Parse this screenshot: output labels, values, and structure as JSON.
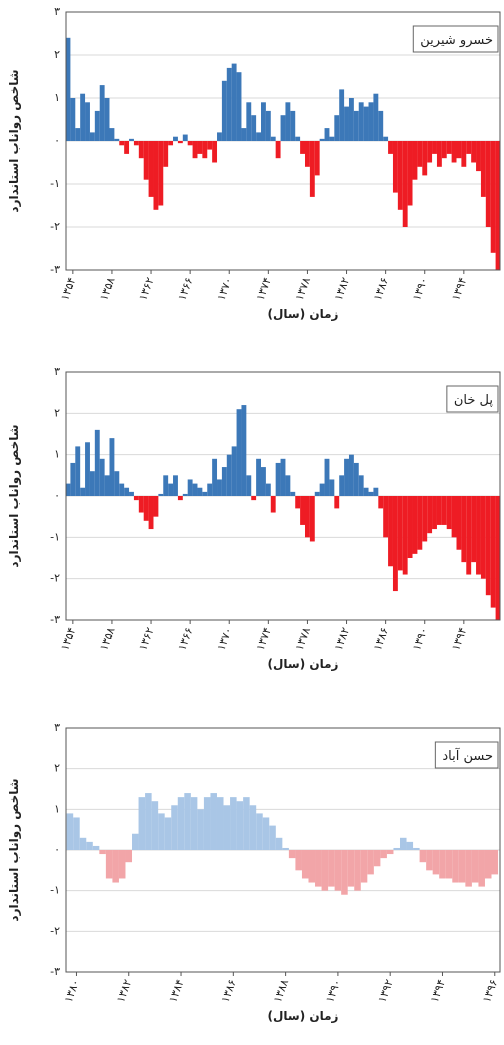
{
  "chart_data": [
    {
      "type": "bar",
      "label": "خسرو شیرین",
      "y_label": "شاخص رواناب استاندارد",
      "x_label": "زمان (سال)",
      "x": [
        1353.5,
        1354,
        1354.5,
        1355,
        1355.5,
        1356,
        1356.5,
        1357,
        1357.5,
        1358,
        1358.5,
        1359,
        1359.5,
        1360,
        1360.5,
        1361,
        1361.5,
        1362,
        1362.5,
        1363,
        1363.5,
        1364,
        1364.5,
        1365,
        1365.5,
        1366,
        1366.5,
        1367,
        1367.5,
        1368,
        1368.5,
        1369,
        1369.5,
        1370,
        1370.5,
        1371,
        1371.5,
        1372,
        1372.5,
        1373,
        1373.5,
        1374,
        1374.5,
        1375,
        1375.5,
        1376,
        1376.5,
        1377,
        1377.5,
        1378,
        1378.5,
        1379,
        1379.5,
        1380,
        1380.5,
        1381,
        1381.5,
        1382,
        1382.5,
        1383,
        1383.5,
        1384,
        1384.5,
        1385,
        1385.5,
        1386,
        1386.5,
        1387,
        1387.5,
        1388,
        1388.5,
        1389,
        1389.5,
        1390,
        1390.5,
        1391,
        1391.5,
        1392,
        1392.5,
        1393,
        1393.5,
        1394,
        1394.5,
        1395,
        1395.5,
        1396,
        1396.5,
        1397,
        1397.5
      ],
      "values": [
        2.4,
        1.0,
        0.3,
        1.1,
        0.9,
        0.2,
        0.7,
        1.3,
        1.0,
        0.3,
        0.05,
        -0.1,
        -0.3,
        0.05,
        -0.1,
        -0.4,
        -0.9,
        -1.3,
        -1.6,
        -1.5,
        -0.6,
        -0.1,
        0.1,
        -0.05,
        0.15,
        -0.1,
        -0.4,
        -0.3,
        -0.4,
        -0.2,
        -0.5,
        0.2,
        1.4,
        1.7,
        1.8,
        1.6,
        0.3,
        0.9,
        0.6,
        0.2,
        0.9,
        0.7,
        0.1,
        -0.4,
        0.6,
        0.9,
        0.7,
        0.1,
        -0.3,
        -0.6,
        -1.3,
        -0.8,
        0.05,
        0.3,
        0.1,
        0.6,
        1.2,
        0.8,
        1.0,
        0.7,
        0.9,
        0.8,
        0.9,
        1.1,
        0.7,
        0.1,
        -0.3,
        -1.2,
        -1.6,
        -2.0,
        -1.5,
        -0.9,
        -0.6,
        -0.8,
        -0.5,
        -0.3,
        -0.6,
        -0.4,
        -0.3,
        -0.5,
        -0.4,
        -0.6,
        -0.3,
        -0.5,
        -0.7,
        -1.3,
        -2.0,
        -2.6,
        -3.0
      ],
      "positive_color": "#3c78b8",
      "negative_color": "#ee1c24",
      "xlim": [
        1353.3,
        1397.7
      ],
      "ylim": [
        -3,
        3
      ],
      "xticks": [
        {
          "value": 1354,
          "label": "۱۳۵۴"
        },
        {
          "value": 1358,
          "label": "۱۳۵۸"
        },
        {
          "value": 1362,
          "label": "۱۳۶۲"
        },
        {
          "value": 1366,
          "label": "۱۳۶۶"
        },
        {
          "value": 1370,
          "label": "۱۳۷۰"
        },
        {
          "value": 1374,
          "label": "۱۳۷۴"
        },
        {
          "value": 1378,
          "label": "۱۳۷۸"
        },
        {
          "value": 1382,
          "label": "۱۳۸۲"
        },
        {
          "value": 1386,
          "label": "۱۳۸۶"
        },
        {
          "value": 1390,
          "label": "۱۳۹۰"
        },
        {
          "value": 1394,
          "label": "۱۳۹۴"
        }
      ],
      "yticks": [
        {
          "value": -3,
          "label": "-۳"
        },
        {
          "value": -2,
          "label": "-۲"
        },
        {
          "value": -1,
          "label": "-۱"
        },
        {
          "value": 0,
          "label": "۰"
        },
        {
          "value": 1,
          "label": "۱"
        },
        {
          "value": 2,
          "label": "۲"
        },
        {
          "value": 3,
          "label": "۳"
        }
      ],
      "grid": true
    },
    {
      "type": "bar",
      "label": "پل خان",
      "y_label": "شاخص رواناب استاندارد",
      "x_label": "زمان (سال)",
      "x": [
        1353.5,
        1354,
        1354.5,
        1355,
        1355.5,
        1356,
        1356.5,
        1357,
        1357.5,
        1358,
        1358.5,
        1359,
        1359.5,
        1360,
        1360.5,
        1361,
        1361.5,
        1362,
        1362.5,
        1363,
        1363.5,
        1364,
        1364.5,
        1365,
        1365.5,
        1366,
        1366.5,
        1367,
        1367.5,
        1368,
        1368.5,
        1369,
        1369.5,
        1370,
        1370.5,
        1371,
        1371.5,
        1372,
        1372.5,
        1373,
        1373.5,
        1374,
        1374.5,
        1375,
        1375.5,
        1376,
        1376.5,
        1377,
        1377.5,
        1378,
        1378.5,
        1379,
        1379.5,
        1380,
        1380.5,
        1381,
        1381.5,
        1382,
        1382.5,
        1383,
        1383.5,
        1384,
        1384.5,
        1385,
        1385.5,
        1386,
        1386.5,
        1387,
        1387.5,
        1388,
        1388.5,
        1389,
        1389.5,
        1390,
        1390.5,
        1391,
        1391.5,
        1392,
        1392.5,
        1393,
        1393.5,
        1394,
        1394.5,
        1395,
        1395.5,
        1396,
        1396.5,
        1397,
        1397.5
      ],
      "values": [
        0.3,
        0.8,
        1.2,
        0.2,
        1.3,
        0.6,
        1.6,
        0.9,
        0.5,
        1.4,
        0.6,
        0.3,
        0.2,
        0.1,
        -0.1,
        -0.4,
        -0.6,
        -0.8,
        -0.5,
        0.05,
        0.5,
        0.3,
        0.5,
        -0.1,
        0.05,
        0.4,
        0.3,
        0.2,
        0.1,
        0.3,
        0.9,
        0.4,
        0.7,
        1.0,
        1.2,
        2.1,
        2.2,
        0.5,
        -0.1,
        0.9,
        0.7,
        0.3,
        -0.4,
        0.8,
        0.9,
        0.5,
        0.1,
        -0.3,
        -0.7,
        -1.0,
        -1.1,
        0.1,
        0.3,
        0.9,
        0.4,
        -0.3,
        0.5,
        0.9,
        1.0,
        0.8,
        0.5,
        0.2,
        0.1,
        0.2,
        -0.3,
        -1.0,
        -1.7,
        -2.3,
        -1.8,
        -1.9,
        -1.5,
        -1.4,
        -1.3,
        -1.1,
        -0.9,
        -0.8,
        -0.7,
        -0.7,
        -0.8,
        -1.0,
        -1.3,
        -1.6,
        -1.9,
        -1.6,
        -1.9,
        -2.0,
        -2.4,
        -2.7,
        -3.0
      ],
      "positive_color": "#3c78b8",
      "negative_color": "#ee1c24",
      "xlim": [
        1353.3,
        1397.7
      ],
      "ylim": [
        -3,
        3
      ],
      "xticks": [
        {
          "value": 1354,
          "label": "۱۳۵۴"
        },
        {
          "value": 1358,
          "label": "۱۳۵۸"
        },
        {
          "value": 1362,
          "label": "۱۳۶۲"
        },
        {
          "value": 1366,
          "label": "۱۳۶۶"
        },
        {
          "value": 1370,
          "label": "۱۳۷۰"
        },
        {
          "value": 1374,
          "label": "۱۳۷۴"
        },
        {
          "value": 1378,
          "label": "۱۳۷۸"
        },
        {
          "value": 1382,
          "label": "۱۳۸۲"
        },
        {
          "value": 1386,
          "label": "۱۳۸۶"
        },
        {
          "value": 1390,
          "label": "۱۳۹۰"
        },
        {
          "value": 1394,
          "label": "۱۳۹۴"
        }
      ],
      "yticks": [
        {
          "value": -3,
          "label": "-۳"
        },
        {
          "value": -2,
          "label": "-۲"
        },
        {
          "value": -1,
          "label": "-۱"
        },
        {
          "value": 0,
          "label": "۰"
        },
        {
          "value": 1,
          "label": "۱"
        },
        {
          "value": 2,
          "label": "۲"
        },
        {
          "value": 3,
          "label": "۳"
        }
      ],
      "grid": true
    },
    {
      "type": "bar",
      "label": "حسن آباد",
      "y_label": "شاخص رواناب استاندارد",
      "x_label": "زمان (سال)",
      "x": [
        1379.75,
        1380,
        1380.25,
        1380.5,
        1380.75,
        1381,
        1381.25,
        1381.5,
        1381.75,
        1382,
        1382.25,
        1382.5,
        1382.75,
        1383,
        1383.25,
        1383.5,
        1383.75,
        1384,
        1384.25,
        1384.5,
        1384.75,
        1385,
        1385.25,
        1385.5,
        1385.75,
        1386,
        1386.25,
        1386.5,
        1386.75,
        1387,
        1387.25,
        1387.5,
        1387.75,
        1388,
        1388.25,
        1388.5,
        1388.75,
        1389,
        1389.25,
        1389.5,
        1389.75,
        1390,
        1390.25,
        1390.5,
        1390.75,
        1391,
        1391.25,
        1391.5,
        1391.75,
        1392,
        1392.25,
        1392.5,
        1392.75,
        1393,
        1393.25,
        1393.5,
        1393.75,
        1394,
        1394.25,
        1394.5,
        1394.75,
        1395,
        1395.25,
        1395.5,
        1395.75,
        1396
      ],
      "values": [
        0.9,
        0.8,
        0.3,
        0.2,
        0.1,
        -0.1,
        -0.7,
        -0.8,
        -0.7,
        -0.3,
        0.4,
        1.3,
        1.4,
        1.2,
        0.9,
        0.8,
        1.1,
        1.3,
        1.4,
        1.3,
        1.0,
        1.3,
        1.4,
        1.3,
        1.1,
        1.3,
        1.2,
        1.3,
        1.1,
        0.9,
        0.8,
        0.6,
        0.3,
        0.05,
        -0.2,
        -0.5,
        -0.7,
        -0.8,
        -0.9,
        -1.0,
        -0.9,
        -1.0,
        -1.1,
        -0.9,
        -1.0,
        -0.8,
        -0.6,
        -0.4,
        -0.2,
        -0.1,
        0.05,
        0.3,
        0.2,
        0.05,
        -0.3,
        -0.5,
        -0.6,
        -0.7,
        -0.7,
        -0.8,
        -0.8,
        -0.9,
        -0.8,
        -0.9,
        -0.7,
        -0.6
      ],
      "positive_color": "#a9c6e6",
      "negative_color": "#f2a5a8",
      "xlim": [
        1379.6,
        1396.2
      ],
      "ylim": [
        -3,
        3
      ],
      "xticks": [
        {
          "value": 1380,
          "label": "۱۳۸۰"
        },
        {
          "value": 1382,
          "label": "۱۳۸۲"
        },
        {
          "value": 1384,
          "label": "۱۳۸۴"
        },
        {
          "value": 1386,
          "label": "۱۳۸۶"
        },
        {
          "value": 1388,
          "label": "۱۳۸۸"
        },
        {
          "value": 1390,
          "label": "۱۳۹۰"
        },
        {
          "value": 1392,
          "label": "۱۳۹۲"
        },
        {
          "value": 1394,
          "label": "۱۳۹۴"
        },
        {
          "value": 1396,
          "label": "۱۳۹۶"
        }
      ],
      "yticks": [
        {
          "value": -3,
          "label": "-۳"
        },
        {
          "value": -2,
          "label": "-۲"
        },
        {
          "value": -1,
          "label": "-۱"
        },
        {
          "value": 0,
          "label": "۰"
        },
        {
          "value": 1,
          "label": "۱"
        },
        {
          "value": 2,
          "label": "۲"
        },
        {
          "value": 3,
          "label": "۳"
        }
      ],
      "grid": true
    }
  ]
}
